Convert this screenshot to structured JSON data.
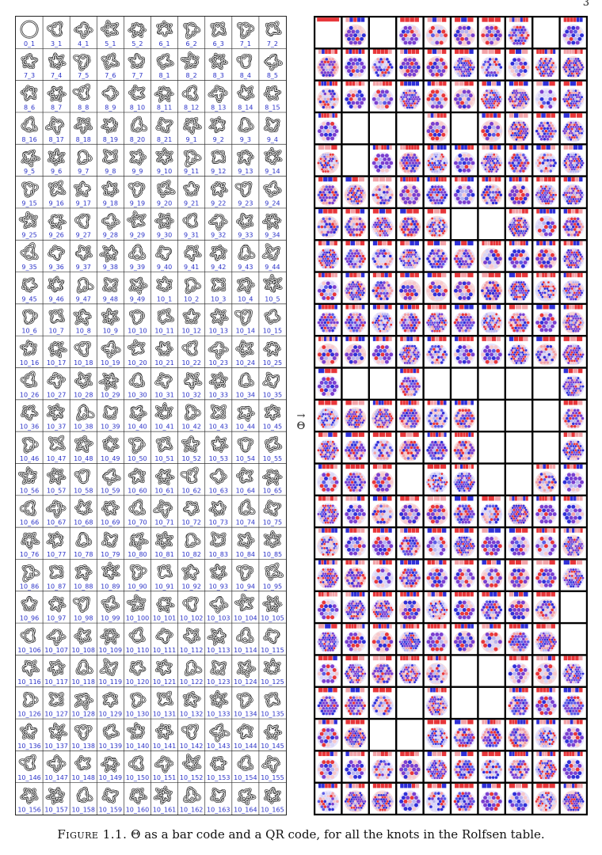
{
  "page_number": "3",
  "arrow_label": {
    "arrow": "→",
    "symbol": "Θ"
  },
  "caption": {
    "figure_label": "Figure 1.1.",
    "text": "Θ as a bar code and a QR code, for all the knots in the Rolfsen table."
  },
  "knot_table": {
    "rows": 25,
    "cols": 10,
    "knots": [
      "0_1",
      "3_1",
      "4_1",
      "5_1",
      "5_2",
      "6_1",
      "6_2",
      "6_3",
      "7_1",
      "7_2",
      "7_3",
      "7_4",
      "7_5",
      "7_6",
      "7_7",
      "8_1",
      "8_2",
      "8_3",
      "8_4",
      "8_5",
      "8_6",
      "8_7",
      "8_8",
      "8_9",
      "8_10",
      "8_11",
      "8_12",
      "8_13",
      "8_14",
      "8_15",
      "8_16",
      "8_17",
      "8_18",
      "8_19",
      "8_20",
      "8_21",
      "9_1",
      "9_2",
      "9_3",
      "9_4",
      "9_5",
      "9_6",
      "9_7",
      "9_8",
      "9_9",
      "9_10",
      "9_11",
      "9_12",
      "9_13",
      "9_14",
      "9_15",
      "9_16",
      "9_17",
      "9_18",
      "9_19",
      "9_20",
      "9_21",
      "9_22",
      "9_23",
      "9_24",
      "9_25",
      "9_26",
      "9_27",
      "9_28",
      "9_29",
      "9_30",
      "9_31",
      "9_32",
      "9_33",
      "9_34",
      "9_35",
      "9_36",
      "9_37",
      "9_38",
      "9_39",
      "9_40",
      "9_41",
      "9_42",
      "9_43",
      "9_44",
      "9_45",
      "9_46",
      "9_47",
      "9_48",
      "9_49",
      "10_1",
      "10_2",
      "10_3",
      "10_4",
      "10_5",
      "10_6",
      "10_7",
      "10_8",
      "10_9",
      "10_10",
      "10_11",
      "10_12",
      "10_13",
      "10_14",
      "10_15",
      "10_16",
      "10_17",
      "10_18",
      "10_19",
      "10_20",
      "10_21",
      "10_22",
      "10_23",
      "10_24",
      "10_25",
      "10_26",
      "10_27",
      "10_28",
      "10_29",
      "10_30",
      "10_31",
      "10_32",
      "10_33",
      "10_34",
      "10_35",
      "10_36",
      "10_37",
      "10_38",
      "10_39",
      "10_40",
      "10_41",
      "10_42",
      "10_43",
      "10_44",
      "10_45",
      "10_46",
      "10_47",
      "10_48",
      "10_49",
      "10_50",
      "10_51",
      "10_52",
      "10_53",
      "10_54",
      "10_55",
      "10_56",
      "10_57",
      "10_58",
      "10_59",
      "10_60",
      "10_61",
      "10_62",
      "10_63",
      "10_64",
      "10_65",
      "10_66",
      "10_67",
      "10_68",
      "10_69",
      "10_70",
      "10_71",
      "10_72",
      "10_73",
      "10_74",
      "10_75",
      "10_76",
      "10_77",
      "10_78",
      "10_79",
      "10_80",
      "10_81",
      "10_82",
      "10_83",
      "10_84",
      "10_85",
      "10_86",
      "10_87",
      "10_88",
      "10_89",
      "10_90",
      "10_91",
      "10_92",
      "10_93",
      "10_94",
      "10_95",
      "10_96",
      "10_97",
      "10_98",
      "10_99",
      "10_100",
      "10_101",
      "10_102",
      "10_103",
      "10_104",
      "10_105",
      "10_106",
      "10_107",
      "10_108",
      "10_109",
      "10_110",
      "10_111",
      "10_112",
      "10_113",
      "10_114",
      "10_115",
      "10_116",
      "10_117",
      "10_118",
      "10_119",
      "10_120",
      "10_121",
      "10_122",
      "10_123",
      "10_124",
      "10_125",
      "10_126",
      "10_127",
      "10_128",
      "10_129",
      "10_130",
      "10_131",
      "10_132",
      "10_133",
      "10_134",
      "10_135",
      "10_136",
      "10_137",
      "10_138",
      "10_139",
      "10_140",
      "10_141",
      "10_142",
      "10_143",
      "10_144",
      "10_145",
      "10_146",
      "10_147",
      "10_148",
      "10_149",
      "10_150",
      "10_151",
      "10_152",
      "10_153",
      "10_154",
      "10_155",
      "10_156",
      "10_157",
      "10_158",
      "10_159",
      "10_160",
      "10_161",
      "10_162",
      "10_163",
      "10_164",
      "10_165"
    ]
  },
  "qr_table": {
    "rows": 25,
    "cols": 10,
    "blank_cells": [
      0,
      2,
      8,
      31,
      32,
      33,
      35,
      41,
      65,
      66,
      111,
      112,
      114,
      115,
      116,
      117,
      118,
      126,
      127,
      128,
      136,
      137,
      138,
      143,
      146,
      147,
      189,
      199,
      205,
      206,
      213,
      215,
      216,
      222,
      223
    ],
    "colors": {
      "red": "#e8363a",
      "blue": "#2f2fd8",
      "pink": "#f2a3a8",
      "lavender": "#b8b4f0",
      "purple": "#7a3fd0",
      "background": "#ffffff",
      "grid_line": "#000000"
    }
  },
  "colors": {
    "knot_label": "#2a32c8",
    "knot_stroke": "#222222",
    "caption_text": "#111111"
  }
}
